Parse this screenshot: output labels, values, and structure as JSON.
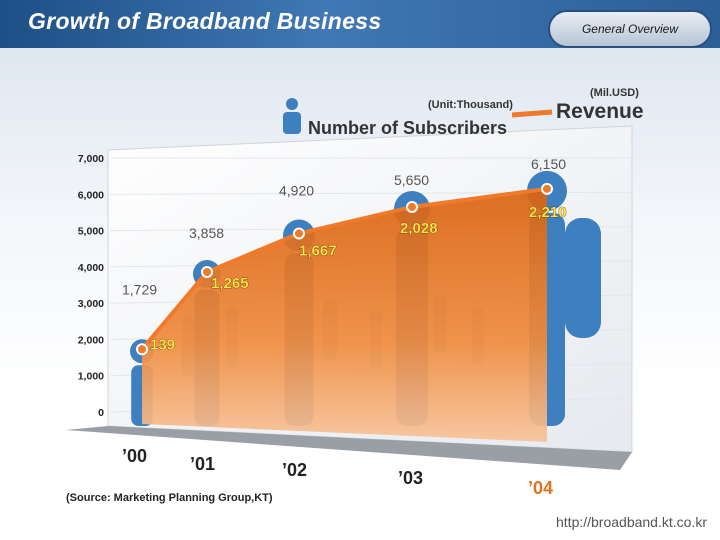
{
  "header": {
    "title": "Growth of Broadband Business",
    "tab_label": "General Overview"
  },
  "footer": {
    "source": "(Source: Marketing Planning Group,KT)",
    "url": "http://broadband.kt.co.kr"
  },
  "colors": {
    "header_bg": "#2c5e97",
    "area_fill": "#e0731e",
    "line": "#f07a2a",
    "people": "#3e7fbf"
  },
  "chart_data": {
    "type": "area",
    "categories": [
      "’00",
      "’01",
      "’02",
      "’03",
      "’04"
    ],
    "y_ticks": [
      "0",
      "1,000",
      "2,000",
      "3,000",
      "4,000",
      "5,000",
      "6,000",
      "7,000"
    ],
    "ylim": [
      0,
      7000
    ],
    "legend": {
      "subscribers": "Number of Subscribers",
      "subscribers_unit": "(Unit:Thousand)",
      "revenue": "Revenue",
      "revenue_unit": "(Mil.USD)"
    },
    "series": [
      {
        "name": "Number of Subscribers",
        "values": [
          1729,
          3858,
          4920,
          5650,
          6150
        ],
        "labels": [
          "1,729",
          "3,858",
          "4,920",
          "5,650",
          "6,150"
        ]
      },
      {
        "name": "Revenue",
        "values": [
          139,
          1265,
          1667,
          2028,
          2210
        ],
        "labels": [
          "139",
          "1,265",
          "1,667",
          "2,028",
          "2,210"
        ]
      }
    ]
  }
}
